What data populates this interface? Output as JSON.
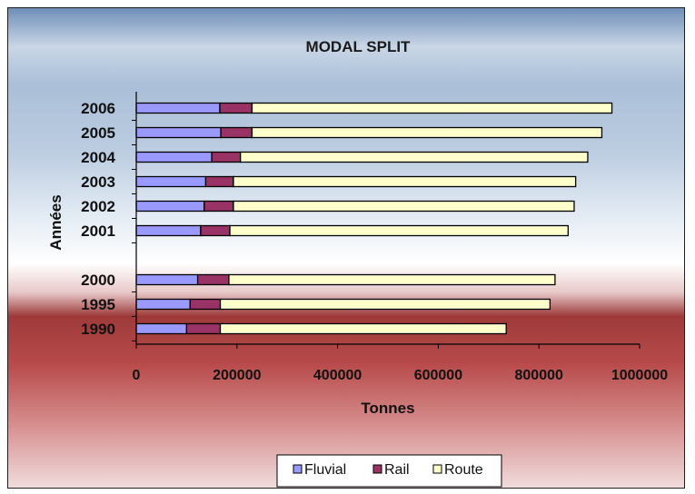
{
  "chart_data": {
    "type": "bar",
    "orientation": "horizontal",
    "stacked": true,
    "title": "MODAL SPLIT",
    "xlabel": "Tonnes",
    "ylabel": "Années",
    "categories": [
      "1990",
      "1995",
      "2000",
      "2001",
      "2002",
      "2003",
      "2004",
      "2005",
      "2006"
    ],
    "category_gap_after": "2000",
    "xlim": [
      0,
      1000000
    ],
    "xticks": [
      "0",
      "200000",
      "400000",
      "600000",
      "800000",
      "1000000"
    ],
    "series": [
      {
        "name": "Fluvial",
        "color": "#9999ff",
        "values": [
          100000,
          107000,
          122000,
          128000,
          135000,
          138000,
          150000,
          168000,
          166000
        ]
      },
      {
        "name": "Rail",
        "color": "#993366",
        "values": [
          67000,
          60000,
          62000,
          58000,
          58000,
          55000,
          57000,
          62000,
          64000
        ]
      },
      {
        "name": "Route",
        "color": "#ffffcc",
        "values": [
          568000,
          655000,
          648000,
          672000,
          677000,
          680000,
          690000,
          695000,
          715000
        ]
      }
    ],
    "grid": false,
    "legend_position": "bottom",
    "background": "gradient-blue-white-red"
  }
}
